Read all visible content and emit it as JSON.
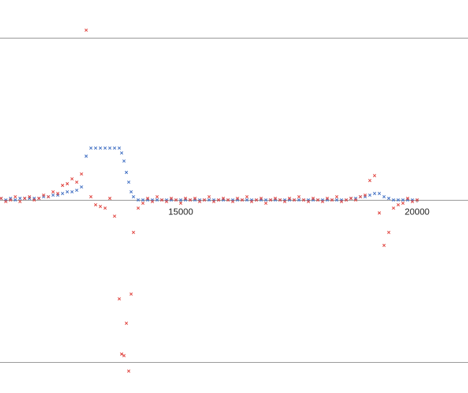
{
  "chart_data": {
    "type": "scatter",
    "x": [
      11200,
      11300,
      11400,
      11500,
      11600,
      11700,
      11800,
      11900,
      12000,
      12100,
      12200,
      12300,
      12400,
      12500,
      12600,
      12700,
      12800,
      12900,
      13000,
      13100,
      13200,
      13300,
      13400,
      13500,
      13600,
      13700,
      13750,
      13800,
      13850,
      13900,
      13950,
      14000,
      14100,
      14200,
      14300,
      14400,
      14500,
      14600,
      14700,
      14800,
      14900,
      15000,
      15100,
      15200,
      15300,
      15400,
      15500,
      15600,
      15700,
      15800,
      15900,
      16000,
      16100,
      16200,
      16300,
      16400,
      16500,
      16600,
      16700,
      16800,
      16900,
      17000,
      17100,
      17200,
      17300,
      17400,
      17500,
      17600,
      17700,
      17800,
      17900,
      18000,
      18100,
      18200,
      18300,
      18400,
      18500,
      18600,
      18700,
      18800,
      18900,
      19000,
      19100,
      19200,
      19300,
      19400,
      19500,
      19600,
      19700,
      19800,
      19900,
      20000
    ],
    "series": [
      {
        "color": "#4472c4",
        "values": [
          0.01,
          0,
          0.01,
          0,
          0.01,
          0.01,
          0.01,
          0.01,
          0.01,
          0.02,
          0.02,
          0.03,
          0.03,
          0.04,
          0.05,
          0.05,
          0.06,
          0.08,
          0.27,
          0.32,
          0.32,
          0.32,
          0.32,
          0.32,
          0.32,
          0.32,
          0.29,
          0.24,
          0.17,
          0.11,
          0.05,
          0.02,
          0,
          0,
          0,
          0,
          0,
          0,
          0,
          0,
          0,
          0,
          0,
          0,
          0,
          0,
          0,
          0,
          0,
          0,
          0,
          0,
          0,
          0,
          0,
          0,
          0,
          0,
          0,
          0,
          0,
          0,
          0,
          0,
          0,
          0,
          0,
          0,
          0,
          0,
          0,
          0,
          0,
          0,
          0,
          0,
          0,
          0.01,
          0.01,
          0.02,
          0.02,
          0.03,
          0.04,
          0.04,
          0.02,
          0.01,
          0,
          0,
          0,
          0,
          0,
          0
        ]
      },
      {
        "color": "#e0443f",
        "values": [
          0.01,
          -0.01,
          0,
          0.02,
          -0.01,
          0.01,
          0.02,
          0,
          0.01,
          0.03,
          0.02,
          0.05,
          0.04,
          0.09,
          0.1,
          0.13,
          0.11,
          0.16,
          1.047,
          0.02,
          -0.03,
          -0.04,
          -0.05,
          0.01,
          -0.1,
          -0.61,
          -0.95,
          -0.96,
          -0.76,
          -1.055,
          -0.58,
          -0.2,
          -0.05,
          -0.02,
          0.01,
          -0.01,
          0.02,
          0,
          -0.01,
          0.01,
          0,
          -0.02,
          0.01,
          0,
          0.01,
          -0.01,
          0,
          0.02,
          -0.01,
          0,
          0.01,
          0,
          -0.01,
          0.01,
          0,
          0.02,
          -0.01,
          0,
          0.01,
          -0.02,
          0,
          0.01,
          0,
          -0.01,
          0.01,
          0,
          0.02,
          0,
          -0.01,
          0.01,
          0,
          -0.01,
          0.01,
          0,
          0.02,
          -0.01,
          0,
          0.01,
          0,
          0.02,
          0.03,
          0.12,
          0.15,
          -0.08,
          -0.28,
          -0.2,
          -0.05,
          -0.03,
          -0.02,
          0.01,
          -0.01,
          0
        ]
      }
    ],
    "xlim": [
      11177,
      21076
    ],
    "ylim": [
      -1.169,
      1.233
    ],
    "xticks": [
      15000,
      20000
    ],
    "yticks": [
      -1,
      0,
      1
    ],
    "grid": true
  }
}
